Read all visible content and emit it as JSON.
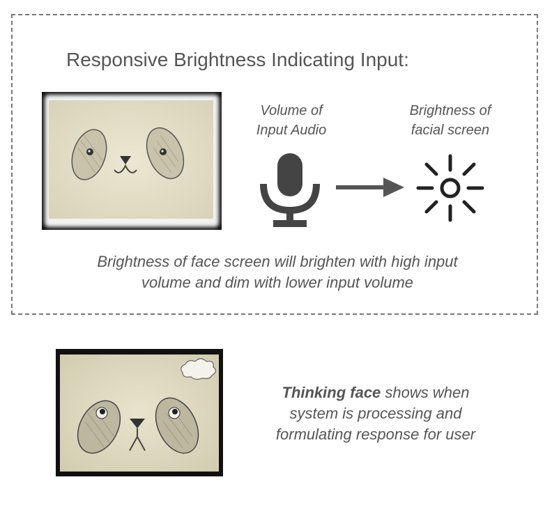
{
  "title": "Responsive Brightness Indicating Input:",
  "input_label": {
    "line1": "Volume of",
    "line2": "Input Audio"
  },
  "output_label": {
    "line1": "Brightness of",
    "line2": "facial screen"
  },
  "brightness_caption": {
    "line1": "Brightness of face screen will brighten with high input",
    "line2": "volume and dim with lower input volume"
  },
  "thinking_caption": {
    "bold": "Thinking face",
    "line1_rest": " shows when",
    "line2": "system is processing and",
    "line3": "formulating response for user"
  },
  "icons": {
    "input": "microphone-icon",
    "relation": "arrow-right-icon",
    "output": "sun-brightness-icon"
  },
  "colors": {
    "text": "#555555",
    "icon": "#444444",
    "paper": "#e6e0c8",
    "frame": "#111111",
    "dashed_border": "#777777"
  }
}
